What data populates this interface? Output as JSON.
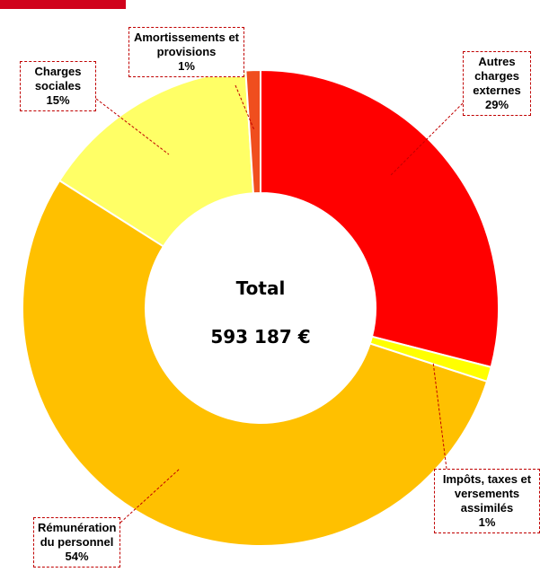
{
  "chart_data": {
    "type": "donut",
    "categories": [
      "Autres charges externes",
      "Impôts, taxes et versements assimilés",
      "Rémunération du personnel",
      "Charges sociales",
      "Amortissements et provisions"
    ],
    "values": [
      29,
      1,
      54,
      15,
      1
    ],
    "value_labels": [
      "29%",
      "1%",
      "54%",
      "15%",
      "1%"
    ],
    "colors": [
      "#ff0000",
      "#ffff00",
      "#ffc000",
      "#ffff66",
      "#f04e1e"
    ],
    "center_title": "Total",
    "center_value": "593 187 €"
  }
}
